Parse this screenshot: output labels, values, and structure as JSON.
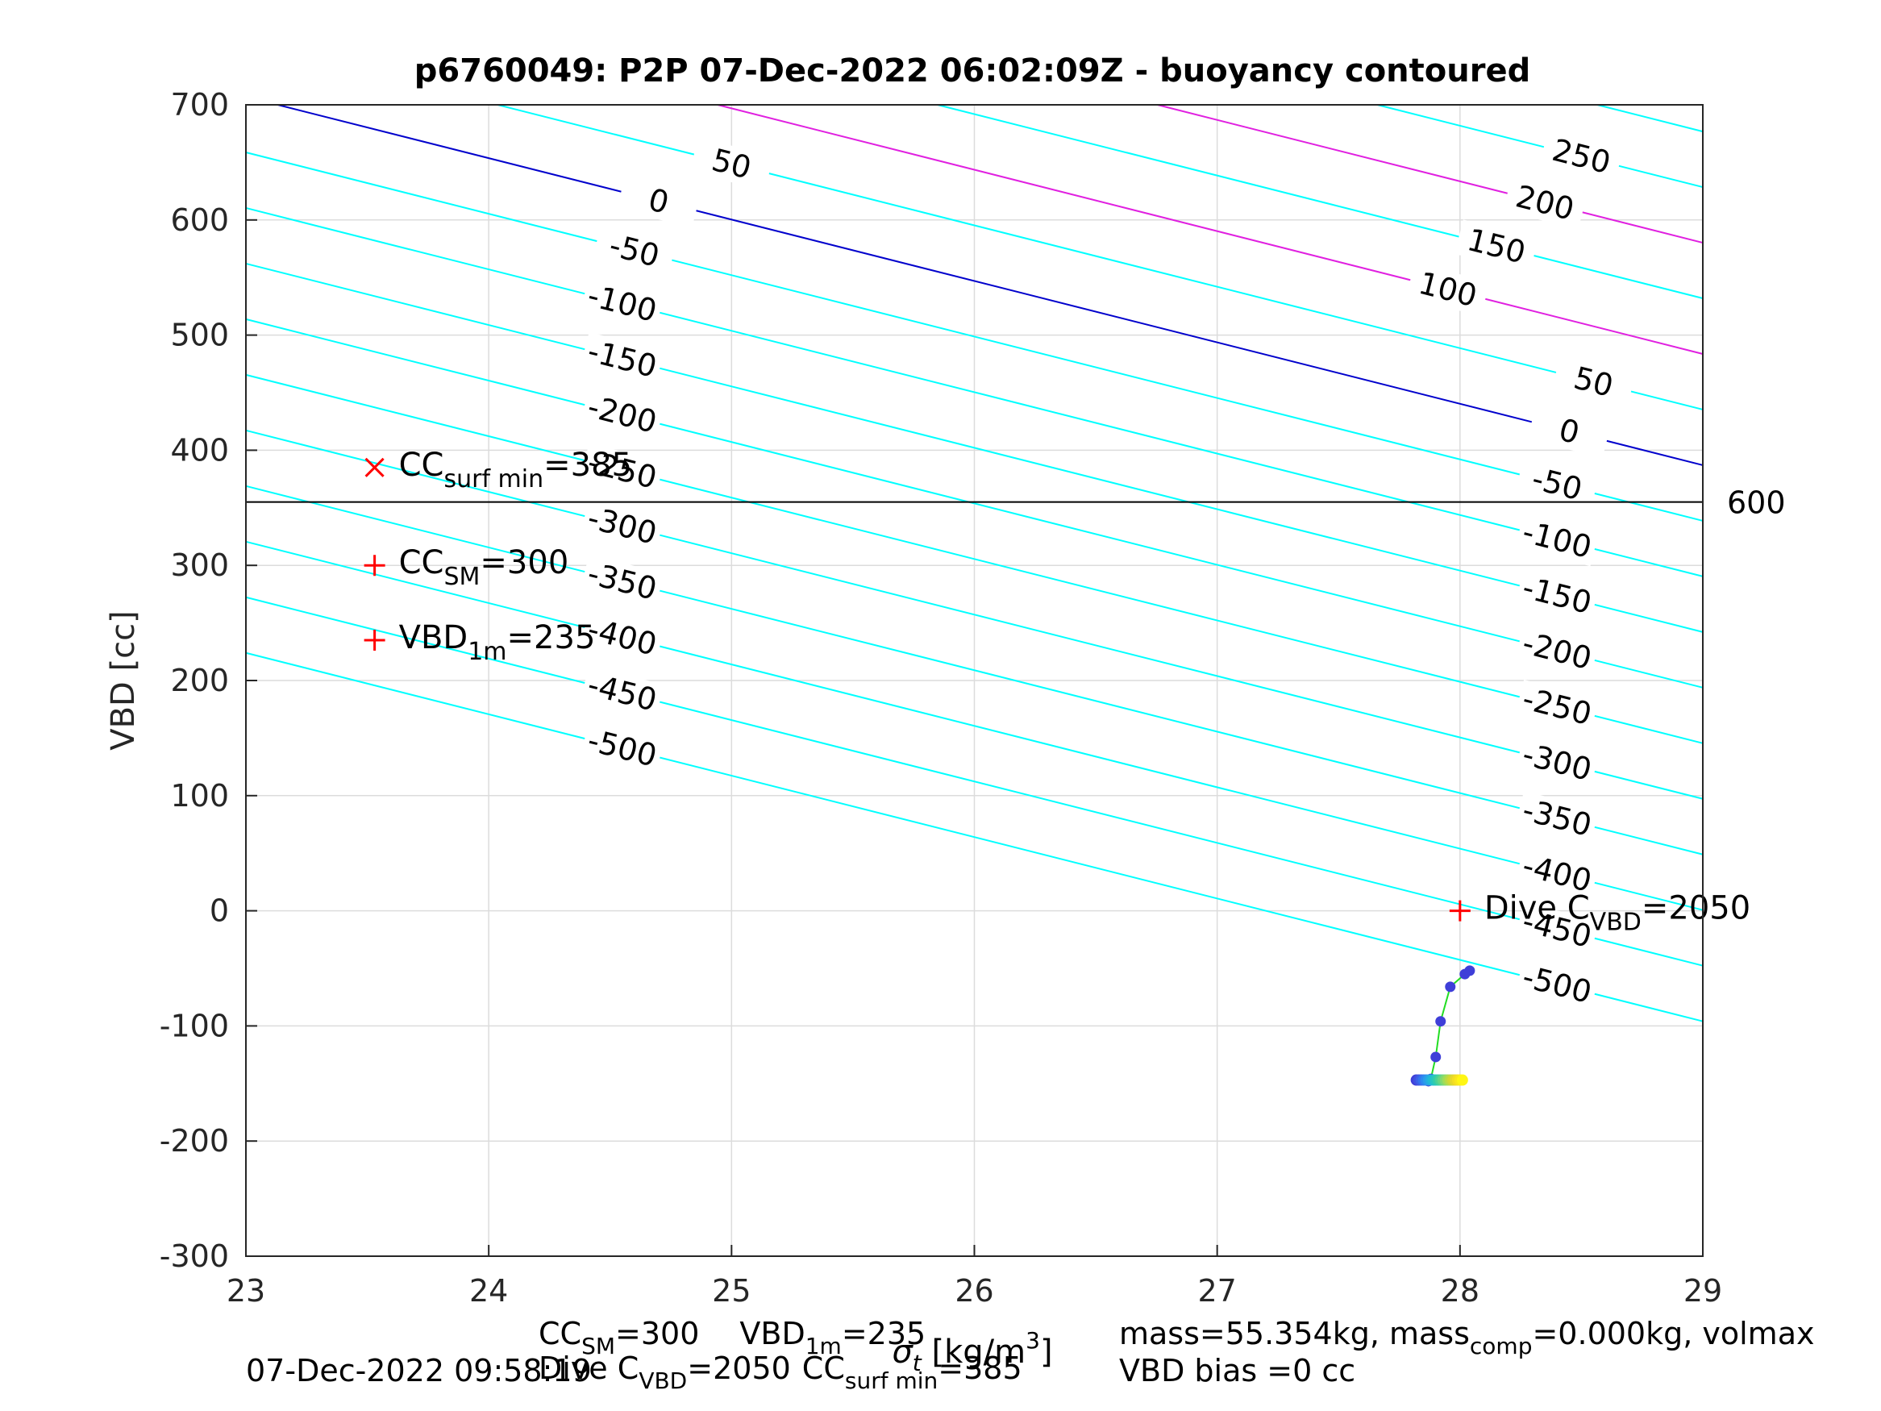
{
  "chart_data": {
    "type": "line",
    "title": "p6760049: P2P 07-Dec-2022 06:02:09Z - buoyancy contoured",
    "xlabel": {
      "prefix": "σ",
      "sub": "t",
      "suffix": " [kg/m",
      "sup": "3",
      "end": "]"
    },
    "ylabel": "VBD [cc]",
    "xlim": [
      23,
      29
    ],
    "ylim": [
      -300,
      700
    ],
    "xticks": [
      "23",
      "24",
      "25",
      "26",
      "27",
      "28",
      "29"
    ],
    "yticks": [
      "-300",
      "-200",
      "-100",
      "0",
      "100",
      "200",
      "300",
      "400",
      "500",
      "600",
      "700"
    ],
    "grid": true,
    "colors": {
      "contour": "#00ffff",
      "zero_contour": "#0000cc",
      "positive_high": "#e020e0",
      "reference": "#000000",
      "marker": "#ff0000",
      "trace": "#22dd22"
    },
    "contours": {
      "slope": -53.33,
      "spacing": 50,
      "min_level": -500,
      "max_level": 250,
      "cyan_levels": [
        -500,
        -450,
        -400,
        -350,
        -300,
        -250,
        -200,
        -150,
        -100,
        -50,
        50,
        150,
        250
      ],
      "magenta_levels": [
        100,
        200
      ],
      "zero_level": 0,
      "left_labels": [
        {
          "text": "50",
          "level": 50,
          "x": 25.0
        },
        {
          "text": "0",
          "level": 0,
          "x": 24.7
        },
        {
          "text": "-50",
          "level": -50,
          "x": 24.6
        },
        {
          "text": "-100",
          "level": -100,
          "x": 24.55
        },
        {
          "text": "-150",
          "level": -150,
          "x": 24.55
        },
        {
          "text": "-200",
          "level": -200,
          "x": 24.55
        },
        {
          "text": "-250",
          "level": -250,
          "x": 24.55
        },
        {
          "text": "-300",
          "level": -300,
          "x": 24.55
        },
        {
          "text": "-350",
          "level": -350,
          "x": 24.55
        },
        {
          "text": "-400",
          "level": -400,
          "x": 24.55
        },
        {
          "text": "-450",
          "level": -450,
          "x": 24.55
        },
        {
          "text": "-500",
          "level": -500,
          "x": 24.55
        }
      ],
      "right_labels": [
        {
          "text": "250",
          "level": 250,
          "x": 28.5
        },
        {
          "text": "200",
          "level": 200,
          "x": 28.35
        },
        {
          "text": "150",
          "level": 150,
          "x": 28.15
        },
        {
          "text": "100",
          "level": 100,
          "x": 27.95
        },
        {
          "text": "50",
          "level": 50,
          "x": 28.55
        },
        {
          "text": "0",
          "level": 0,
          "x": 28.45
        },
        {
          "text": "-50",
          "level": -50,
          "x": 28.4
        },
        {
          "text": "-100",
          "level": -100,
          "x": 28.4
        },
        {
          "text": "-150",
          "level": -150,
          "x": 28.4
        },
        {
          "text": "-200",
          "level": -200,
          "x": 28.4
        },
        {
          "text": "-250",
          "level": -250,
          "x": 28.4
        },
        {
          "text": "-300",
          "level": -300,
          "x": 28.4
        },
        {
          "text": "-350",
          "level": -350,
          "x": 28.4
        },
        {
          "text": "-400",
          "level": -400,
          "x": 28.4
        },
        {
          "text": "-450",
          "level": -450,
          "x": 28.4
        },
        {
          "text": "-500",
          "level": -500,
          "x": 28.4
        }
      ]
    },
    "reference_line": {
      "y": 355,
      "label": "600"
    },
    "markers": [
      {
        "symbol": "x",
        "x": 23.53,
        "y": 385,
        "main": "CC",
        "sub": "surf min",
        "tail": "=385"
      },
      {
        "symbol": "+",
        "x": 23.53,
        "y": 300,
        "main": "CC",
        "sub": "SM",
        "tail": "=300"
      },
      {
        "symbol": "+",
        "x": 23.53,
        "y": 235,
        "main": "VBD",
        "sub": "1m",
        "tail": "=235"
      },
      {
        "symbol": "+",
        "x": 28.0,
        "y": 0,
        "main": "Dive C",
        "sub": "VBD",
        "tail": "=2050"
      }
    ],
    "trace": {
      "x": [
        28.04,
        28.02,
        27.96,
        27.92,
        27.9,
        27.88,
        27.87
      ],
      "y": [
        -52,
        -55,
        -66,
        -96,
        -127,
        -146,
        -148
      ]
    },
    "flat_points": {
      "y": -147,
      "x": [
        27.82,
        27.83,
        27.84,
        27.85,
        27.86,
        27.87,
        27.88,
        27.89,
        27.9,
        27.91,
        27.92,
        27.93,
        27.94,
        27.95,
        27.96,
        27.97,
        27.98,
        27.99,
        28.0,
        28.01
      ],
      "colors": [
        "#3f3fd8",
        "#3f50e0",
        "#3a62e8",
        "#3376ee",
        "#2b8af0",
        "#2a9cea",
        "#22aee0",
        "#20bcd2",
        "#25c6c0",
        "#33ccaa",
        "#4ad296",
        "#66d684",
        "#82da6e",
        "#a0dc58",
        "#bada44",
        "#d2d834",
        "#e6d82a",
        "#f4de22",
        "#fae81c",
        "#fff614"
      ]
    }
  },
  "footer": {
    "left_date": "07-Dec-2022 09:58:19",
    "mid1": {
      "a": "CC",
      "a_sub": "SM",
      "a_tail": "=300",
      "b": "VBD",
      "b_sub": "1m",
      "b_tail": "=235"
    },
    "mid2": {
      "a": "Dive C",
      "a_sub": "VBD",
      "a_tail": "=2050",
      "b": "CC",
      "b_sub": "surf min",
      "b_tail": "=385"
    },
    "right1": {
      "a": "mass=55.354kg, mass",
      "a_sub": "comp",
      "a_tail": "=0.000kg, volmax"
    },
    "right2": "VBD bias =0 cc"
  }
}
